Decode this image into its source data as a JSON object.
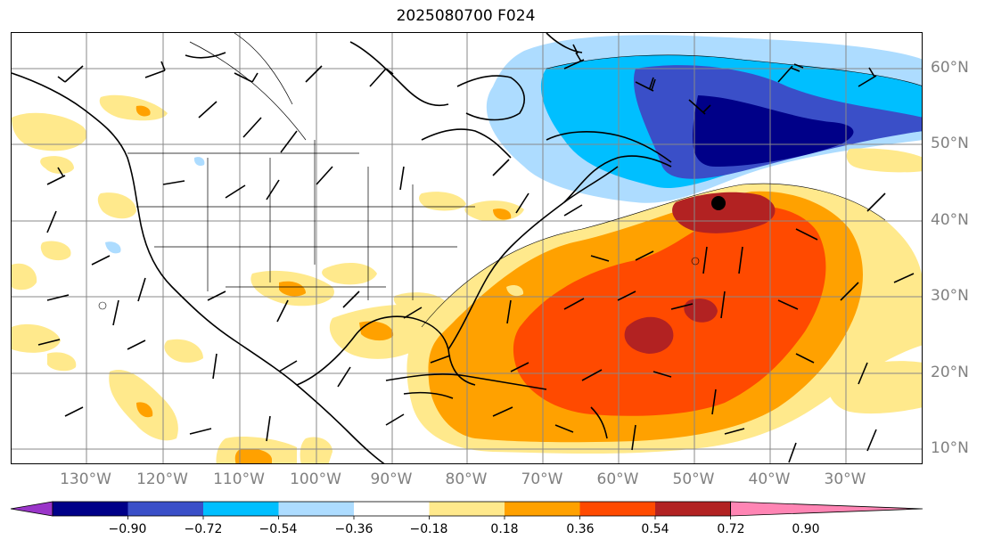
{
  "title": "2025080700 F024",
  "lon_labels": [
    "130°W",
    "120°W",
    "110°W",
    "100°W",
    "90°W",
    "80°W",
    "70°W",
    "60°W",
    "50°W",
    "40°W",
    "30°W"
  ],
  "lat_labels": [
    "60°N",
    "50°N",
    "40°N",
    "30°N",
    "20°N",
    "10°N"
  ],
  "colorbar": {
    "labels": [
      "−0.90",
      "−0.72",
      "−0.54",
      "−0.36",
      "−0.18",
      "0.18",
      "0.36",
      "0.54",
      "0.72",
      "0.90"
    ],
    "colors": [
      "#9a35c9",
      "#000088",
      "#3a4fc8",
      "#00bfff",
      "#addcff",
      "#ffffff",
      "#ffe98c",
      "#ffa100",
      "#ff4a00",
      "#b22222",
      "#ff85b4"
    ]
  },
  "marker": "black-dot"
}
